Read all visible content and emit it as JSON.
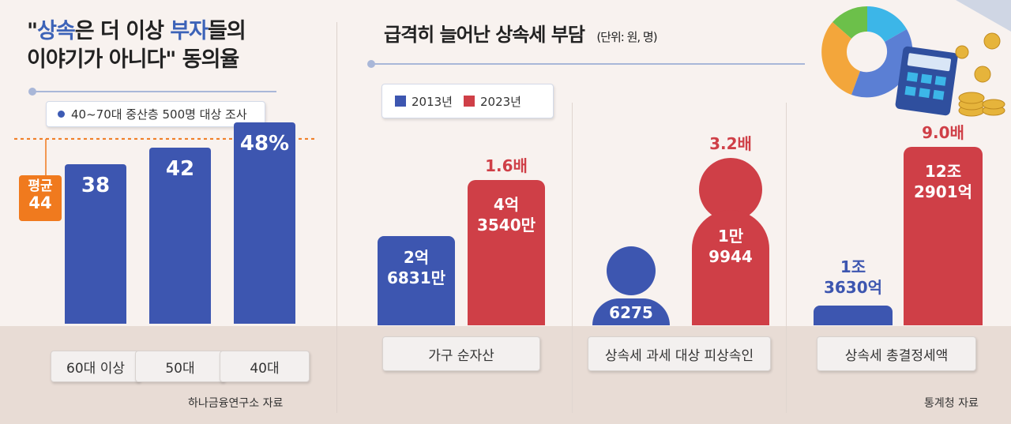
{
  "left_panel": {
    "title_line1_prefix": "\"",
    "title_hl1": "상속",
    "title_mid1": "은 더 이상 ",
    "title_hl2": "부자",
    "title_suffix1": "들의",
    "title_line2": "이야기가 아니다\" 동의율",
    "survey_note": "40~70대 중산층 500명 대상 조사",
    "avg_label": "평균",
    "avg_value": "44",
    "source": "하나금융연구소 자료"
  },
  "right_panel": {
    "title": "급격히 늘어난 상속세 부담",
    "unit": "(단위: 원, 명)",
    "legend": [
      "2013년",
      "2023년"
    ],
    "source": "통계청 자료"
  },
  "colors": {
    "blue": "#3d56b0",
    "red": "#cf3f47",
    "avg": "#f07a1e",
    "accent_text": "#3d63b8"
  },
  "chart_data": [
    {
      "type": "bar",
      "categories": [
        "60대 이상",
        "50대",
        "40대"
      ],
      "values": [
        38,
        42,
        48
      ],
      "value_labels": [
        "38",
        "42",
        "48%"
      ],
      "average": 44,
      "ylim": [
        0,
        50
      ]
    },
    {
      "type": "bar",
      "categories": [
        "가구 순자산",
        "상속세 과세 대상 피상속인",
        "상속세 총결정세액"
      ],
      "series": [
        {
          "name": "2013년",
          "values": [
            268310000,
            6275,
            1363000000000
          ],
          "labels": [
            [
              "2억",
              "6831만"
            ],
            [
              "6275"
            ],
            [
              "1조",
              "3630억"
            ]
          ]
        },
        {
          "name": "2023년",
          "values": [
            435400000,
            19944,
            12290100000000
          ],
          "labels": [
            [
              "4억",
              "3540만"
            ],
            [
              "1만",
              "9944"
            ],
            [
              "12조",
              "2901억"
            ]
          ]
        }
      ],
      "multipliers": [
        "1.6배",
        "3.2배",
        "9.0배"
      ]
    }
  ]
}
